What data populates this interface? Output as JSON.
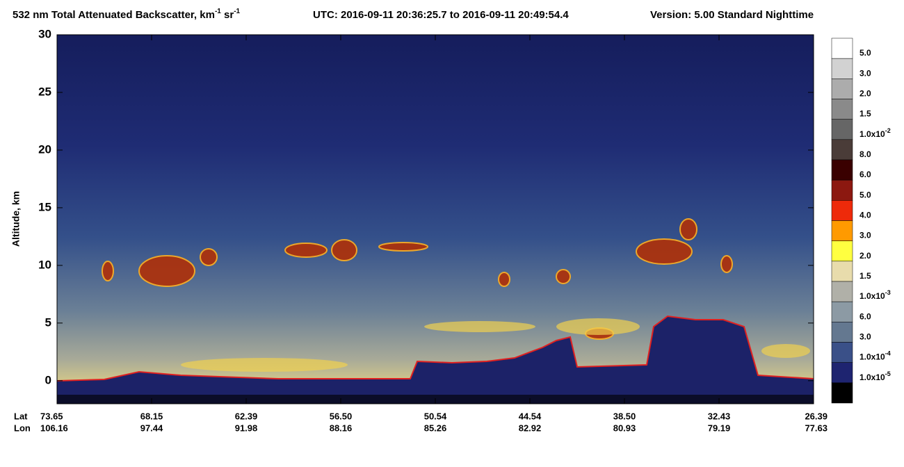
{
  "chart_data": {
    "type": "curtain",
    "title": {
      "text1": "532 nm Total Attenuated Backscatter, km",
      "sup1": "-1",
      "text2": " sr",
      "sup2": "-1",
      "utc": "UTC:  2016-09-11 20:36:25.7  to  2016-09-11 20:49:54.4",
      "version": "Version: 5.00  Standard  Nighttime"
    },
    "y_label": "Altitude, km",
    "ylim": [
      -2,
      30
    ],
    "yticks": [
      0,
      5,
      10,
      15,
      20,
      25,
      30
    ],
    "x_rows": [
      {
        "name": "Lat",
        "labels": [
          "73.65",
          "68.15",
          "62.39",
          "56.50",
          "50.54",
          "44.54",
          "38.50",
          "32.43",
          "26.39"
        ]
      },
      {
        "name": "Lon",
        "labels": [
          "106.16",
          "97.44",
          "91.98",
          "88.16",
          "85.26",
          "82.92",
          "80.93",
          "79.19",
          "77.63"
        ]
      }
    ],
    "colorbar": {
      "colors": [
        "#ffffff",
        "#d2d2d2",
        "#acacac",
        "#8a8a8a",
        "#666666",
        "#4a3c38",
        "#3a0000",
        "#8c1810",
        "#ee2a0a",
        "#ff9a00",
        "#ffff40",
        "#e8dcac",
        "#b0b0a8",
        "#8c9aa4",
        "#647890",
        "#3a5088",
        "#1e2470",
        "#000000"
      ],
      "labels": [
        {
          "text": "5.0"
        },
        {
          "text": "3.0"
        },
        {
          "text": "2.0"
        },
        {
          "text": "1.5"
        },
        {
          "text": "1.0x10",
          "sup": "-2"
        },
        {
          "text": "8.0"
        },
        {
          "text": "6.0"
        },
        {
          "text": "5.0"
        },
        {
          "text": "4.0"
        },
        {
          "text": "3.0"
        },
        {
          "text": "2.0"
        },
        {
          "text": "1.5"
        },
        {
          "text": "1.0x10",
          "sup": "-3"
        },
        {
          "text": "6.0"
        },
        {
          "text": "3.0"
        },
        {
          "text": "1.0x10",
          "sup": "-4"
        },
        {
          "text": "1.0x10",
          "sup": "-5"
        }
      ]
    }
  }
}
